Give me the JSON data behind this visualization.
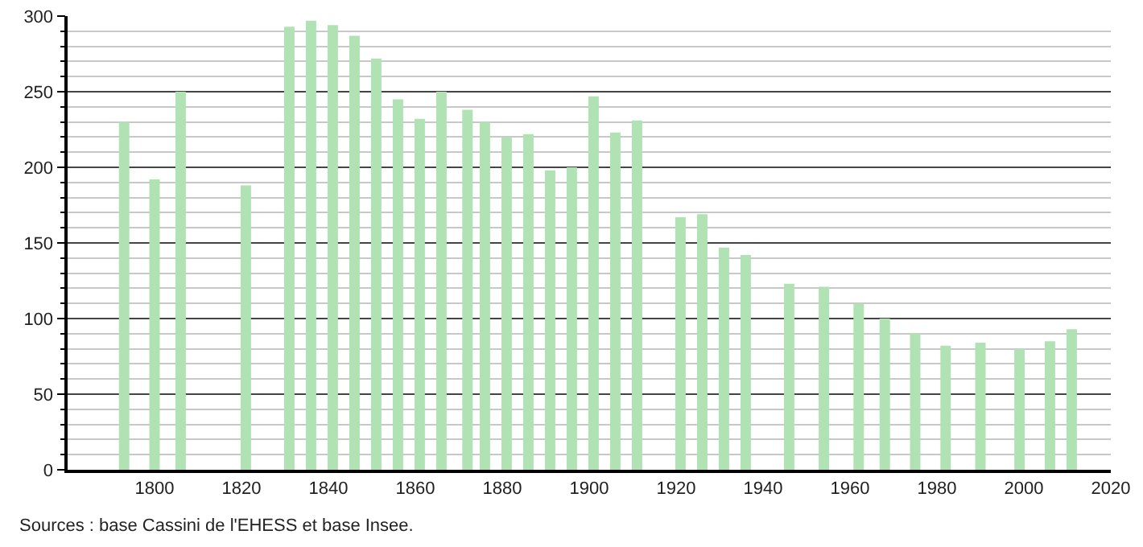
{
  "chart_data": {
    "type": "bar",
    "x": [
      1793,
      1800,
      1806,
      1821,
      1831,
      1836,
      1841,
      1846,
      1851,
      1856,
      1861,
      1866,
      1872,
      1876,
      1881,
      1886,
      1891,
      1896,
      1901,
      1906,
      1911,
      1921,
      1926,
      1931,
      1936,
      1946,
      1954,
      1962,
      1968,
      1975,
      1982,
      1990,
      1999,
      2006,
      2011
    ],
    "values": [
      230,
      192,
      250,
      188,
      293,
      297,
      294,
      287,
      272,
      245,
      232,
      250,
      238,
      230,
      220,
      222,
      198,
      200,
      247,
      223,
      231,
      167,
      169,
      147,
      142,
      123,
      121,
      110,
      100,
      90,
      82,
      84,
      80,
      85,
      93
    ],
    "color": "#b0e2b4",
    "xlim": [
      1780,
      2020
    ],
    "xticks": [
      1800,
      1820,
      1840,
      1860,
      1880,
      1900,
      1920,
      1940,
      1960,
      1980,
      2000,
      2020
    ],
    "ylim": [
      0,
      300
    ],
    "yticks": [
      0,
      {
        "value": 10,
        "label": null
      },
      {
        "value": 20,
        "label": null
      },
      {
        "value": 30,
        "label": null
      },
      {
        "value": 40,
        "label": null
      },
      50,
      {
        "value": 60,
        "label": null
      },
      {
        "value": 70,
        "label": null
      },
      {
        "value": 80,
        "label": null
      },
      {
        "value": 90,
        "label": null
      },
      100,
      {
        "value": 110,
        "label": null
      },
      {
        "value": 120,
        "label": null
      },
      {
        "value": 130,
        "label": null
      },
      {
        "value": 140,
        "label": null
      },
      150,
      {
        "value": 160,
        "label": null
      },
      {
        "value": 170,
        "label": null
      },
      {
        "value": 180,
        "label": null
      },
      {
        "value": 190,
        "label": null
      },
      200,
      {
        "value": 210,
        "label": null
      },
      {
        "value": 220,
        "label": null
      },
      {
        "value": 230,
        "label": null
      },
      {
        "value": 240,
        "label": null
      },
      250,
      {
        "value": 260,
        "label": null
      },
      {
        "value": 270,
        "label": null
      },
      {
        "value": 280,
        "label": null
      },
      {
        "value": 290,
        "label": null
      },
      300
    ],
    "grid": "y",
    "annotations": [
      "Sources : base Cassini de l'EHESS et base Insee."
    ]
  }
}
